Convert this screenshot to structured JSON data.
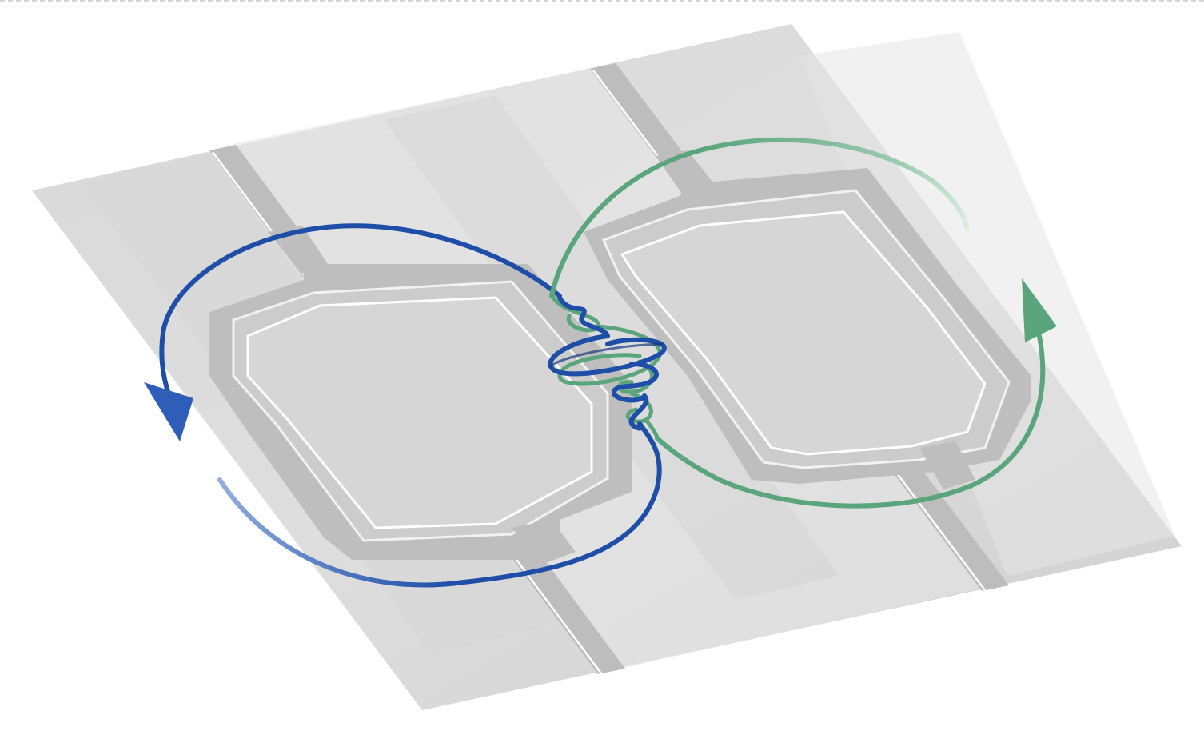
{
  "figure": {
    "description_free": true,
    "colors": {
      "background": "#ffffff",
      "plate_light": "#e2e2e2",
      "plate_mid": "#d3d3d3",
      "rail": "#b9b9b9",
      "rail_edge": "#ffffff",
      "loop_left": "#1f4ea8",
      "loop_left_light": "#9db3e0",
      "loop_right": "#5aa57c",
      "loop_right_light": "#cfe6d7",
      "coil_dark": "#173a80"
    },
    "icons": {
      "left_arrow": "arrowhead-down-icon",
      "right_arrow": "arrowhead-up-icon"
    }
  }
}
